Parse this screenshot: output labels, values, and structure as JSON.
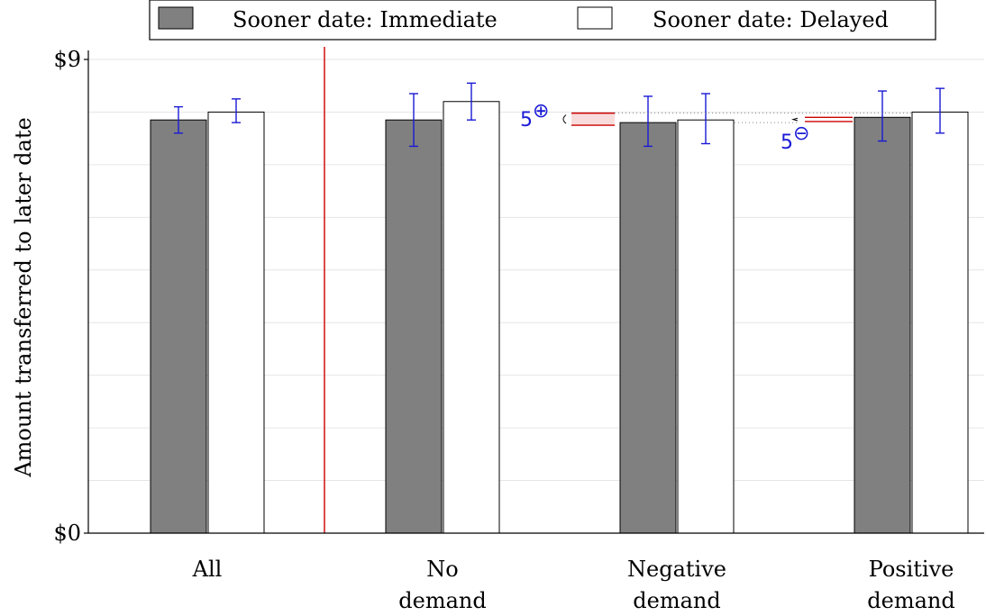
{
  "chart_data": {
    "type": "bar",
    "ylabel": "Amount transferred to later date",
    "xlabel": "",
    "title": "",
    "ylim": [
      0,
      9
    ],
    "y_tick_labels": [
      {
        "value": 0,
        "label": "$0"
      },
      {
        "value": 9,
        "label": "$9"
      }
    ],
    "grid": true,
    "legend_position": "top",
    "categories": [
      {
        "lines": [
          "All"
        ]
      },
      {
        "lines": [
          "No",
          "demand"
        ]
      },
      {
        "lines": [
          "Negative",
          "demand"
        ]
      },
      {
        "lines": [
          "Positive",
          "demand"
        ]
      }
    ],
    "series": [
      {
        "name": "Sooner date: Immediate",
        "color": "#808080",
        "values": [
          7.85,
          7.85,
          7.8,
          7.9
        ],
        "err_low": [
          7.6,
          7.35,
          7.35,
          7.45
        ],
        "err_high": [
          8.1,
          8.35,
          8.3,
          8.4
        ]
      },
      {
        "name": "Sooner date: Delayed",
        "color": "#ffffff",
        "values": [
          8.0,
          8.2,
          7.85,
          8.0
        ],
        "err_low": [
          7.8,
          7.85,
          7.4,
          7.6
        ],
        "err_high": [
          8.25,
          8.55,
          8.35,
          8.45
        ]
      }
    ],
    "annotations": [
      {
        "label": "5",
        "sup": "⊕",
        "color": "#1a1ad6"
      },
      {
        "label": "5",
        "sup": "⊖",
        "color": "#1a1ad6"
      }
    ],
    "colors": {
      "error_bar": "#1a1ad6",
      "divider": "#cc0000",
      "grid": "#e6e6e6"
    }
  }
}
